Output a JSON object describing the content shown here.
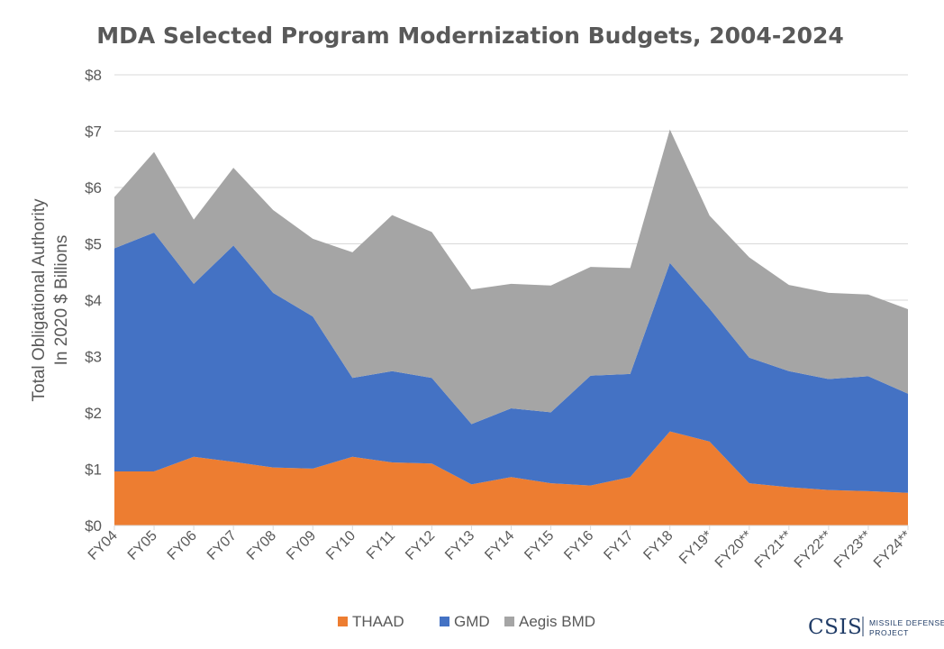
{
  "chart_data": {
    "type": "area",
    "stacked": true,
    "title": "MDA Selected Program Modernization Budgets, 2004-2024",
    "ylabel_lines": [
      "Total Obligational Authority",
      "In 2020 $ Billions"
    ],
    "xlabel": "",
    "categories": [
      "FY04",
      "FY05",
      "FY06",
      "FY07",
      "FY08",
      "FY09",
      "FY10",
      "FY11",
      "FY12",
      "FY13",
      "FY14",
      "FY15",
      "FY16",
      "FY17",
      "FY18",
      "FY19*",
      "FY20**",
      "FY21**",
      "FY22**",
      "FY23**",
      "FY24**"
    ],
    "ylim": [
      0,
      8
    ],
    "yticks": [
      0,
      1,
      2,
      3,
      4,
      5,
      6,
      7,
      8
    ],
    "ytick_labels": [
      "$0",
      "$1",
      "$2",
      "$3",
      "$4",
      "$5",
      "$6",
      "$7",
      "$8"
    ],
    "grid": true,
    "legend_position": "bottom",
    "series": [
      {
        "name": "THAAD",
        "color": "#ed7d31",
        "values": [
          0.96,
          0.96,
          1.22,
          1.13,
          1.03,
          1.01,
          1.22,
          1.12,
          1.1,
          0.73,
          0.86,
          0.75,
          0.71,
          0.86,
          1.67,
          1.49,
          0.75,
          0.68,
          0.63,
          0.61,
          0.58
        ]
      },
      {
        "name": "GMD",
        "color": "#4472c4",
        "values": [
          3.96,
          4.24,
          3.07,
          3.84,
          3.1,
          2.7,
          1.4,
          1.62,
          1.52,
          1.07,
          1.22,
          1.26,
          1.95,
          1.83,
          2.99,
          2.36,
          2.23,
          2.06,
          1.97,
          2.04,
          1.76
        ]
      },
      {
        "name": "Aegis BMD",
        "color": "#a5a5a5",
        "values": [
          0.91,
          1.43,
          1.14,
          1.38,
          1.47,
          1.38,
          2.23,
          2.77,
          2.59,
          2.39,
          2.21,
          2.25,
          1.93,
          1.88,
          2.37,
          1.65,
          1.78,
          1.53,
          1.53,
          1.45,
          1.5
        ]
      }
    ]
  },
  "logo": {
    "main": "CSIS",
    "sub_line1": "MISSILE DEFENSE",
    "sub_line2": "PROJECT"
  }
}
